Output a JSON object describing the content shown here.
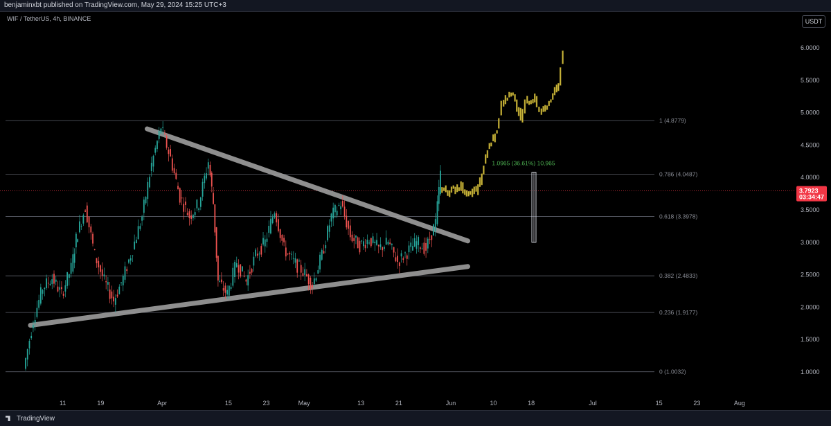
{
  "header": {
    "publisher": "benjaminxbt published on TradingView.com, May 29, 2024 15:25 UTC+3"
  },
  "symbol": {
    "label": "WIF / TetherUS, 4h, BINANCE"
  },
  "currency_button": {
    "label": "USDT"
  },
  "footer": {
    "brand": "TradingView"
  },
  "colors": {
    "up": "#26a69a",
    "down": "#ef5350",
    "projection": "#c9b53a",
    "last_price": "#f23645",
    "trendline": "#9e9e9e"
  },
  "chart_data": {
    "type": "line",
    "ylim": [
      0.92,
      6.3
    ],
    "y_ticks": [
      "6.0000",
      "5.5000",
      "5.0000",
      "4.5000",
      "4.0000",
      "3.5000",
      "3.0000",
      "2.5000",
      "2.0000",
      "1.5000",
      "1.0000"
    ],
    "x_ticks": [
      "11",
      "19",
      "Apr",
      "15",
      "23",
      "May",
      "13",
      "21",
      "Jun",
      "10",
      "18",
      "Jul",
      "15",
      "23",
      "Aug"
    ],
    "last_price": {
      "value": "3.7923",
      "countdown": "03:34:47"
    },
    "fib_levels": [
      {
        "label": "1 (4.8779)",
        "value": 4.8779
      },
      {
        "label": "0.786 (4.0487)",
        "value": 4.0487
      },
      {
        "label": "0.618 (3.3978)",
        "value": 3.3978
      },
      {
        "label": "0.382 (2.4833)",
        "value": 2.4833
      },
      {
        "label": "0.236 (1.9177)",
        "value": 1.9177
      },
      {
        "label": "0 (1.0032)",
        "value": 1.0032
      }
    ],
    "measure": {
      "label": "1.0965 (36.61%) 10,965",
      "from": 3.0,
      "to": 4.08
    },
    "trendlines": {
      "upper": [
        {
          "x": "2024-03-30",
          "y": 4.75
        },
        {
          "x": "2024-05-29",
          "y": 2.85
        }
      ],
      "lower": [
        {
          "x": "2024-03-03",
          "y": 1.72
        },
        {
          "x": "2024-05-29",
          "y": 2.68
        }
      ]
    },
    "series": [
      {
        "type": "candles",
        "points": [
          [
            "2024-03-03",
            1.05,
            1.8
          ],
          [
            "2024-03-05",
            1.8,
            2.3
          ],
          [
            "2024-03-07",
            2.3,
            2.45
          ],
          [
            "2024-03-09",
            2.45,
            2.2
          ],
          [
            "2024-03-11",
            2.2,
            2.6
          ],
          [
            "2024-03-13",
            2.6,
            3.05
          ],
          [
            "2024-03-14",
            3.05,
            3.55
          ],
          [
            "2024-03-16",
            3.55,
            2.8
          ],
          [
            "2024-03-18",
            2.8,
            2.4
          ],
          [
            "2024-03-20",
            2.4,
            2.1
          ],
          [
            "2024-03-22",
            2.1,
            2.45
          ],
          [
            "2024-03-24",
            2.45,
            2.9
          ],
          [
            "2024-03-26",
            2.9,
            3.4
          ],
          [
            "2024-03-28",
            3.4,
            4.2
          ],
          [
            "2024-03-30",
            4.2,
            4.78
          ],
          [
            "2024-04-01",
            4.78,
            4.3
          ],
          [
            "2024-04-03",
            4.3,
            3.7
          ],
          [
            "2024-04-05",
            3.7,
            3.4
          ],
          [
            "2024-04-07",
            3.4,
            3.6
          ],
          [
            "2024-04-09",
            3.6,
            4.25
          ],
          [
            "2024-04-11",
            4.25,
            3.6
          ],
          [
            "2024-04-12",
            3.6,
            2.4
          ],
          [
            "2024-04-13",
            2.4,
            2.2
          ],
          [
            "2024-04-15",
            2.2,
            2.7
          ],
          [
            "2024-04-17",
            2.7,
            2.4
          ],
          [
            "2024-04-19",
            2.4,
            2.8
          ],
          [
            "2024-04-21",
            2.8,
            3.0
          ],
          [
            "2024-04-23",
            3.0,
            3.5
          ],
          [
            "2024-04-25",
            3.5,
            2.9
          ],
          [
            "2024-04-27",
            2.9,
            2.7
          ],
          [
            "2024-04-29",
            2.7,
            2.55
          ],
          [
            "2024-05-01",
            2.55,
            2.35
          ],
          [
            "2024-05-03",
            2.35,
            2.8
          ],
          [
            "2024-05-05",
            2.8,
            3.4
          ],
          [
            "2024-05-07",
            3.4,
            3.6
          ],
          [
            "2024-05-09",
            3.6,
            3.1
          ],
          [
            "2024-05-11",
            3.1,
            2.95
          ],
          [
            "2024-05-13",
            2.95,
            3.05
          ],
          [
            "2024-05-15",
            3.05,
            2.9
          ],
          [
            "2024-05-17",
            2.9,
            3.0
          ],
          [
            "2024-05-19",
            3.0,
            2.7
          ],
          [
            "2024-05-21",
            2.7,
            2.85
          ],
          [
            "2024-05-23",
            2.85,
            3.0
          ],
          [
            "2024-05-25",
            3.0,
            2.9
          ],
          [
            "2024-05-27",
            2.9,
            3.3
          ],
          [
            "2024-05-29",
            3.3,
            4.05
          ],
          [
            "2024-05-30",
            4.05,
            3.79
          ]
        ]
      },
      {
        "type": "projection",
        "points": [
          [
            "2024-05-30",
            3.8
          ],
          [
            "2024-06-01",
            3.75
          ],
          [
            "2024-06-03",
            3.85
          ],
          [
            "2024-06-05",
            3.7
          ],
          [
            "2024-06-07",
            3.8
          ],
          [
            "2024-06-09",
            4.4
          ],
          [
            "2024-06-11",
            4.7
          ],
          [
            "2024-06-12",
            5.1
          ],
          [
            "2024-06-14",
            5.3
          ],
          [
            "2024-06-16",
            4.9
          ],
          [
            "2024-06-17",
            5.15
          ],
          [
            "2024-06-19",
            5.2
          ],
          [
            "2024-06-20",
            4.95
          ],
          [
            "2024-06-22",
            5.1
          ],
          [
            "2024-06-24",
            5.45
          ],
          [
            "2024-06-25",
            5.95
          ]
        ]
      }
    ]
  }
}
